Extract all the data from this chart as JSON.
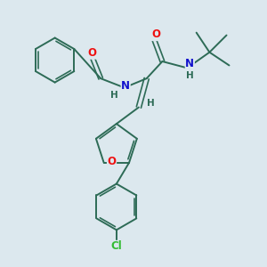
{
  "background_color": "#dce8ee",
  "bond_color": "#2d6b56",
  "atom_colors": {
    "O": "#ee1111",
    "N": "#1111cc",
    "Cl": "#33bb33",
    "H": "#2d6b56",
    "C": "#2d6b56"
  },
  "figsize": [
    3.0,
    3.0
  ],
  "dpi": 100
}
